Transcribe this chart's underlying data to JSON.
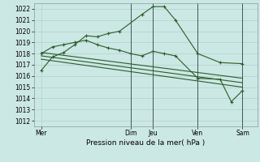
{
  "bg_color": "#cce8e4",
  "grid_color": "#b0d0cc",
  "line_color": "#2a5c2a",
  "ylim": [
    1011.5,
    1022.5
  ],
  "yticks": [
    1012,
    1013,
    1014,
    1015,
    1016,
    1017,
    1018,
    1019,
    1020,
    1021,
    1022
  ],
  "xlabel": "Pression niveau de la mer( hPa )",
  "day_labels": [
    "Mer",
    "Dim",
    "Jeu",
    "Ven",
    "Sam"
  ],
  "day_positions": [
    0,
    48,
    60,
    84,
    108
  ],
  "vline_positions": [
    48,
    60,
    84,
    108
  ],
  "xlim": [
    -4,
    116
  ],
  "main_line_x": [
    0,
    6,
    12,
    18,
    24,
    30,
    36,
    42,
    54,
    60,
    66,
    72,
    84,
    96,
    108
  ],
  "main_line_y": [
    1016.5,
    1017.7,
    1018.1,
    1018.8,
    1019.6,
    1019.5,
    1019.8,
    1020.0,
    1021.5,
    1022.2,
    1022.2,
    1021.0,
    1018.0,
    1017.2,
    1017.1
  ],
  "line2_x": [
    0,
    6,
    12,
    18,
    24,
    30,
    36,
    42,
    48,
    54,
    60,
    66,
    72,
    84,
    96,
    102,
    108
  ],
  "line2_y": [
    1018.0,
    1018.6,
    1018.8,
    1019.0,
    1019.2,
    1018.8,
    1018.5,
    1018.3,
    1018.0,
    1017.8,
    1018.2,
    1018.0,
    1017.8,
    1015.8,
    1015.7,
    1013.7,
    1014.7
  ],
  "trend1_x": [
    0,
    108
  ],
  "trend1_y": [
    1018.1,
    1015.8
  ],
  "trend2_x": [
    0,
    108
  ],
  "trend2_y": [
    1017.8,
    1015.4
  ],
  "trend3_x": [
    0,
    108
  ],
  "trend3_y": [
    1017.5,
    1015.0
  ]
}
